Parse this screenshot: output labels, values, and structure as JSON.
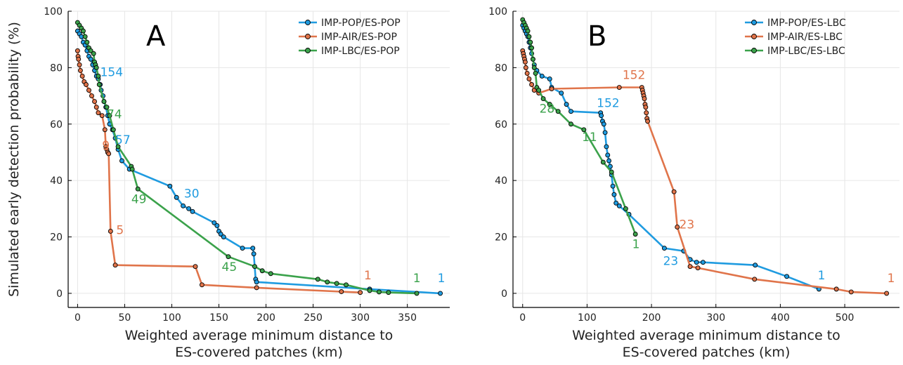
{
  "chart_data": [
    {
      "type": "line",
      "panel_label": "A",
      "xlabel": "Weighted average minimum distance to\nES-covered patches (km)",
      "ylabel": "Simulated early detection probability (%)",
      "xlim": [
        -10,
        395
      ],
      "ylim": [
        -5,
        100
      ],
      "xticks": [
        0,
        50,
        100,
        150,
        200,
        250,
        300,
        350
      ],
      "yticks": [
        0,
        20,
        40,
        60,
        80,
        100
      ],
      "grid": true,
      "legend_position": "top-right",
      "series": [
        {
          "name": "IMP-POP/ES-POP",
          "color": "#1f9be0",
          "points": [
            [
              0,
              93
            ],
            [
              2,
              92
            ],
            [
              4,
              91
            ],
            [
              6,
              89
            ],
            [
              8,
              88
            ],
            [
              10,
              86
            ],
            [
              12,
              84
            ],
            [
              14,
              83
            ],
            [
              16,
              81
            ],
            [
              18,
              79
            ],
            [
              20,
              77
            ],
            [
              22,
              76
            ],
            [
              24,
              74
            ],
            [
              25,
              72
            ],
            [
              27,
              70
            ],
            [
              28,
              68
            ],
            [
              30,
              66
            ],
            [
              32,
              63
            ],
            [
              34,
              60
            ],
            [
              37,
              58
            ],
            [
              40,
              55
            ],
            [
              43,
              51
            ],
            [
              47,
              47
            ],
            [
              55,
              44
            ],
            [
              98,
              38
            ],
            [
              105,
              34
            ],
            [
              112,
              31
            ],
            [
              118,
              30
            ],
            [
              122,
              29
            ],
            [
              145,
              25
            ],
            [
              148,
              24
            ],
            [
              150,
              22
            ],
            [
              152,
              21
            ],
            [
              155,
              20
            ],
            [
              175,
              16
            ],
            [
              186,
              16
            ],
            [
              187,
              14
            ],
            [
              189,
              5
            ],
            [
              190,
              4
            ],
            [
              310,
              1.5
            ],
            [
              385,
              0
            ]
          ],
          "label_points": [
            [
              24,
              77,
              "154"
            ],
            [
              40,
              53,
              "57"
            ],
            [
              113,
              34,
              "30"
            ],
            [
              382,
              4,
              "1"
            ]
          ]
        },
        {
          "name": "IMP-AIR/ES-POP",
          "color": "#e0744a",
          "points": [
            [
              0,
              86
            ],
            [
              0.5,
              84
            ],
            [
              1,
              83
            ],
            [
              2,
              81
            ],
            [
              3,
              79
            ],
            [
              5,
              77
            ],
            [
              7,
              75
            ],
            [
              9,
              74
            ],
            [
              12,
              72
            ],
            [
              15,
              70
            ],
            [
              18,
              68
            ],
            [
              20,
              66
            ],
            [
              22,
              64
            ],
            [
              26,
              63
            ],
            [
              29,
              58
            ],
            [
              30,
              52
            ],
            [
              31,
              51
            ],
            [
              32,
              50
            ],
            [
              33,
              49.5
            ],
            [
              35,
              22
            ],
            [
              40,
              10
            ],
            [
              125,
              9.5
            ],
            [
              132,
              3
            ],
            [
              190,
              2
            ],
            [
              280,
              0.6
            ],
            [
              300,
              0.3
            ]
          ],
          "label_points": [
            [
              26,
              51,
              "9"
            ],
            [
              41,
              21,
              "5"
            ],
            [
              304,
              5,
              "1"
            ]
          ]
        },
        {
          "name": "IMP-LBC/ES-POP",
          "color": "#3ba24b",
          "points": [
            [
              0,
              96
            ],
            [
              2,
              95
            ],
            [
              4,
              94
            ],
            [
              6,
              93
            ],
            [
              8,
              91
            ],
            [
              10,
              89
            ],
            [
              12,
              87
            ],
            [
              14,
              86
            ],
            [
              17,
              85
            ],
            [
              18,
              82
            ],
            [
              19,
              81
            ],
            [
              20,
              80
            ],
            [
              22,
              77
            ],
            [
              23,
              74
            ],
            [
              28,
              68
            ],
            [
              31,
              66
            ],
            [
              34,
              63
            ],
            [
              38,
              58
            ],
            [
              43,
              52
            ],
            [
              57,
              45
            ],
            [
              58,
              44
            ],
            [
              64,
              37
            ],
            [
              160,
              13
            ],
            [
              188,
              9.5
            ],
            [
              196,
              8
            ],
            [
              205,
              7
            ],
            [
              255,
              5
            ],
            [
              265,
              4
            ],
            [
              275,
              3.5
            ],
            [
              285,
              3
            ],
            [
              310,
              1
            ],
            [
              320,
              0.5
            ],
            [
              330,
              0.3
            ],
            [
              360,
              0
            ]
          ],
          "label_points": [
            [
              31,
              62,
              "74"
            ],
            [
              57,
              32,
              "49"
            ],
            [
              153,
              8,
              "45"
            ],
            [
              356,
              4,
              "1"
            ]
          ]
        }
      ]
    },
    {
      "type": "line",
      "panel_label": "B",
      "xlabel": "Weighted average minimum distance to\nES-covered patches (km)",
      "ylabel": "",
      "xlim": [
        -15,
        585
      ],
      "ylim": [
        -5,
        100
      ],
      "xticks": [
        0,
        100,
        200,
        300,
        400,
        500
      ],
      "yticks": [
        0,
        20,
        40,
        60,
        80,
        100
      ],
      "grid": true,
      "legend_position": "top-right",
      "series": [
        {
          "name": "IMP-POP/ES-LBC",
          "color": "#1f9be0",
          "points": [
            [
              0,
              95
            ],
            [
              2,
              94
            ],
            [
              4,
              93
            ],
            [
              6,
              92
            ],
            [
              8,
              91
            ],
            [
              10,
              89
            ],
            [
              12,
              87
            ],
            [
              14,
              85
            ],
            [
              16,
              83
            ],
            [
              18,
              81
            ],
            [
              22,
              79
            ],
            [
              30,
              77
            ],
            [
              42,
              76
            ],
            [
              45,
              73
            ],
            [
              60,
              71
            ],
            [
              68,
              67
            ],
            [
              75,
              64.5
            ],
            [
              121,
              64
            ],
            [
              122,
              63
            ],
            [
              124,
              61
            ],
            [
              126,
              60
            ],
            [
              128,
              57
            ],
            [
              130,
              52
            ],
            [
              132,
              49
            ],
            [
              134,
              47
            ],
            [
              136,
              45
            ],
            [
              138,
              42
            ],
            [
              140,
              38
            ],
            [
              142,
              35
            ],
            [
              145,
              32
            ],
            [
              150,
              31
            ],
            [
              165,
              28
            ],
            [
              220,
              16
            ],
            [
              250,
              15
            ],
            [
              260,
              12
            ],
            [
              270,
              11
            ],
            [
              280,
              11
            ],
            [
              361,
              10
            ],
            [
              410,
              6
            ],
            [
              460,
              1.5
            ]
          ],
          "label_points": [
            [
              115,
              66,
              "152"
            ],
            [
              218,
              10,
              "23"
            ],
            [
              458,
              5,
              "1"
            ]
          ]
        },
        {
          "name": "IMP-AIR/ES-LBC",
          "color": "#e0744a",
          "points": [
            [
              0,
              86
            ],
            [
              1,
              85
            ],
            [
              2,
              84
            ],
            [
              3,
              83
            ],
            [
              4,
              82
            ],
            [
              5,
              80
            ],
            [
              7,
              78
            ],
            [
              10,
              76
            ],
            [
              14,
              74
            ],
            [
              18,
              72
            ],
            [
              25,
              71
            ],
            [
              45,
              72.5
            ],
            [
              150,
              73
            ],
            [
              185,
              73
            ],
            [
              186,
              72
            ],
            [
              187,
              71
            ],
            [
              188,
              70
            ],
            [
              189,
              69
            ],
            [
              190,
              67
            ],
            [
              191,
              66
            ],
            [
              192,
              64
            ],
            [
              193,
              62
            ],
            [
              194,
              61
            ],
            [
              235,
              36
            ],
            [
              240,
              23.5
            ],
            [
              260,
              9.5
            ],
            [
              272,
              9
            ],
            [
              360,
              5
            ],
            [
              487,
              1.5
            ],
            [
              510,
              0.5
            ],
            [
              565,
              0
            ]
          ],
          "label_points": [
            [
              155,
              76,
              "152"
            ],
            [
              243,
              23,
              "23"
            ],
            [
              566,
              4,
              "1"
            ]
          ]
        },
        {
          "name": "IMP-LBC/ES-LBC",
          "color": "#3ba24b",
          "points": [
            [
              0,
              97
            ],
            [
              2,
              96
            ],
            [
              4,
              95
            ],
            [
              6,
              94
            ],
            [
              8,
              93
            ],
            [
              10,
              91
            ],
            [
              12,
              89
            ],
            [
              14,
              87
            ],
            [
              16,
              83
            ],
            [
              18,
              80
            ],
            [
              20,
              78
            ],
            [
              22,
              73
            ],
            [
              25,
              72
            ],
            [
              32,
              69
            ],
            [
              42,
              67
            ],
            [
              55,
              64.5
            ],
            [
              75,
              60
            ],
            [
              95,
              58
            ],
            [
              125,
              46.5
            ],
            [
              138,
              43
            ],
            [
              160,
              30
            ],
            [
              175,
              21
            ]
          ],
          "label_points": [
            [
              26,
              64,
              "28"
            ],
            [
              92,
              54,
              "11"
            ],
            [
              170,
              16,
              "1"
            ]
          ]
        }
      ]
    }
  ]
}
